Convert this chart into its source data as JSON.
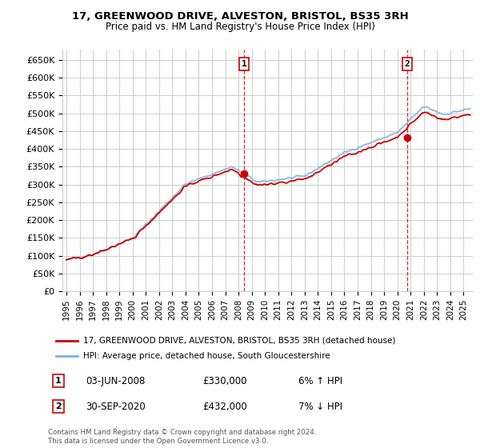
{
  "title": "17, GREENWOOD DRIVE, ALVESTON, BRISTOL, BS35 3RH",
  "subtitle": "Price paid vs. HM Land Registry's House Price Index (HPI)",
  "ylabel_ticks": [
    "£0",
    "£50K",
    "£100K",
    "£150K",
    "£200K",
    "£250K",
    "£300K",
    "£350K",
    "£400K",
    "£450K",
    "£500K",
    "£550K",
    "£600K",
    "£650K"
  ],
  "ytick_values": [
    0,
    50000,
    100000,
    150000,
    200000,
    250000,
    300000,
    350000,
    400000,
    450000,
    500000,
    550000,
    600000,
    650000
  ],
  "ylim": [
    0,
    680000
  ],
  "xlim_start": 1994.7,
  "xlim_end": 2025.7,
  "sale1_x": 2008.42,
  "sale1_y": 330000,
  "sale1_label": "1",
  "sale2_x": 2020.75,
  "sale2_y": 432000,
  "sale2_label": "2",
  "line1_color": "#cc0000",
  "line2_color": "#7ab4d8",
  "marker_color": "#cc0000",
  "background_color": "#ffffff",
  "grid_color": "#cccccc",
  "legend_line1": "17, GREENWOOD DRIVE, ALVESTON, BRISTOL, BS35 3RH (detached house)",
  "legend_line2": "HPI: Average price, detached house, South Gloucestershire",
  "annotation1_date": "03-JUN-2008",
  "annotation1_price": "£330,000",
  "annotation1_hpi": "6% ↑ HPI",
  "annotation2_date": "30-SEP-2020",
  "annotation2_price": "£432,000",
  "annotation2_hpi": "7% ↓ HPI",
  "footnote": "Contains HM Land Registry data © Crown copyright and database right 2024.\nThis data is licensed under the Open Government Licence v3.0."
}
